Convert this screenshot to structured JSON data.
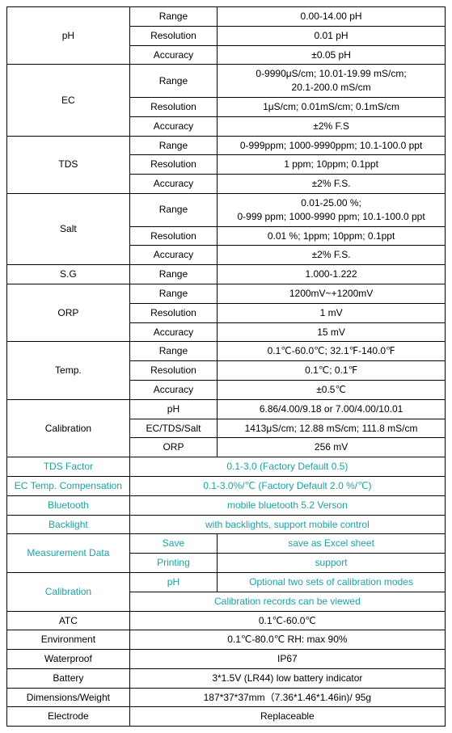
{
  "colors": {
    "border": "#000000",
    "text_black": "#000000",
    "text_teal": "#1aa3a3",
    "background": "#ffffff"
  },
  "typography": {
    "font_family": "Arial, sans-serif",
    "font_size_pt": 9
  },
  "table_structure": {
    "type": "table",
    "col_widths_pct": [
      28,
      20,
      52
    ],
    "note": "Three-column spec table. Col1 = parameter group (often rowspanned). Col2 = attribute label. Col3 = value. Some rows merge col2+col3."
  },
  "labels": {
    "range": "Range",
    "resolution": "Resolution",
    "accuracy": "Accuracy"
  },
  "sections": {
    "ph": {
      "label": "pH",
      "range": "0.00-14.00 pH",
      "resolution": "0.01 pH",
      "accuracy": "±0.05 pH"
    },
    "ec": {
      "label": "EC",
      "range": "0-9990μS/cm; 10.01-19.99 mS/cm;\n20.1-200.0 mS/cm",
      "resolution": "1μS/cm; 0.01mS/cm; 0.1mS/cm",
      "accuracy": "±2% F.S"
    },
    "tds": {
      "label": "TDS",
      "range": "0-999ppm; 1000-9990ppm; 10.1-100.0 ppt",
      "resolution": "1 ppm; 10ppm; 0.1ppt",
      "accuracy": "±2% F.S."
    },
    "salt": {
      "label": "Salt",
      "range": "0.01-25.00 %;\n0-999 ppm; 1000-9990 ppm; 10.1-100.0 ppt",
      "resolution": "0.01 %; 1ppm; 10ppm; 0.1ppt",
      "accuracy": "±2% F.S."
    },
    "sg": {
      "label": "S.G",
      "range": "1.000-1.222"
    },
    "orp": {
      "label": "ORP",
      "range": "1200mV~+1200mV",
      "resolution": "1 mV",
      "accuracy": "15 mV"
    },
    "temp": {
      "label": "Temp.",
      "range": "0.1℃-60.0℃; 32.1℉-140.0℉",
      "resolution": "0.1℃; 0.1℉",
      "accuracy": "±0.5℃"
    },
    "calibration": {
      "label": "Calibration",
      "ph_label": "pH",
      "ph_value": "6.86/4.00/9.18 or 7.00/4.00/10.01",
      "ects_label": "EC/TDS/Salt",
      "ects_value": "1413μS/cm; 12.88 mS/cm; 111.8 mS/cm",
      "orp_label": "ORP",
      "orp_value": "256 mV"
    },
    "tds_factor": {
      "label": "TDS Factor",
      "value": "0.1-3.0 (Factory Default 0.5)",
      "teal": true
    },
    "ec_temp_comp": {
      "label": "EC Temp. Compensation",
      "value": "0.1-3.0%/℃ (Factory Default 2.0 %/℃)",
      "teal": true
    },
    "bluetooth": {
      "label": "Bluetooth",
      "value": "mobile bluetooth 5.2 Verson",
      "teal": true
    },
    "backlight": {
      "label": "Backlight",
      "value": "with backlights, support mobile control",
      "teal": true
    },
    "measurement_data": {
      "label": "Measurement Data",
      "save_label": "Save",
      "save_value": "save as Excel sheet",
      "print_label": "Printing",
      "print_value": "support",
      "teal": true
    },
    "calibration2": {
      "label": "Calibration",
      "ph_label": "pH",
      "ph_value": "Optional two sets of calibration modes",
      "records": "Calibration records can be viewed",
      "teal": true
    },
    "atc": {
      "label": "ATC",
      "value": "0.1℃-60.0℃"
    },
    "environment": {
      "label": "Environment",
      "value": "0.1℃-80.0℃  RH: max 90%"
    },
    "waterproof": {
      "label": "Waterproof",
      "value": "IP67"
    },
    "battery": {
      "label": "Battery",
      "value": "3*1.5V (LR44)   low battery indicator"
    },
    "dimensions": {
      "label": "Dimensions/Weight",
      "value": "187*37*37mm（7.36*1.46*1.46in)/ 95g"
    },
    "electrode": {
      "label": "Electrode",
      "value": "Replaceable"
    }
  }
}
